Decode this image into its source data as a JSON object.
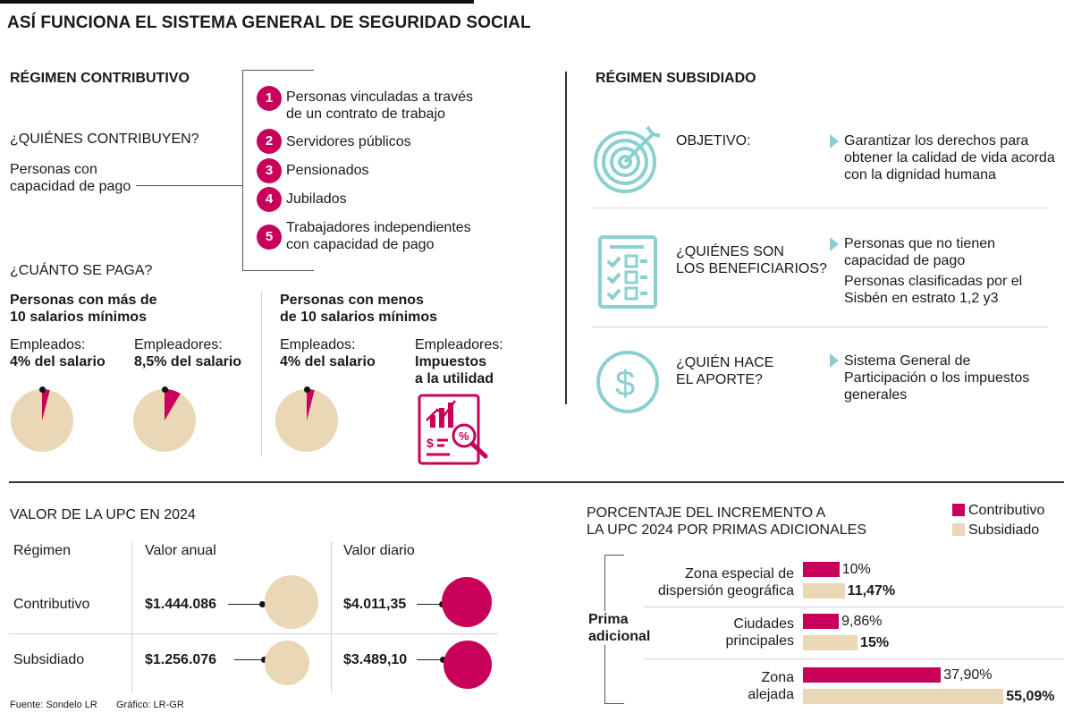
{
  "title": "ASÍ FUNCIONA EL SISTEMA GENERAL DE SEGURIDAD SOCIAL",
  "contributivo": {
    "heading": "RÉGIMEN CONTRIBUTIVO",
    "quienes_q": "¿QUIÉNES CONTRIBUYEN?",
    "quienes_a_1": "Personas con",
    "quienes_a_2": "capacidad de pago",
    "list": [
      {
        "n": "1",
        "l1": "Personas vinculadas a través",
        "l2": "de un contrato de trabajo"
      },
      {
        "n": "2",
        "l1": "Servidores públicos",
        "l2": ""
      },
      {
        "n": "3",
        "l1": "Pensionados",
        "l2": ""
      },
      {
        "n": "4",
        "l1": "Jubilados",
        "l2": ""
      },
      {
        "n": "5",
        "l1": "Trabajadores independientes",
        "l2": "con capacidad de pago"
      }
    ],
    "cuanto_q": "¿CUÁNTO SE PAGA?",
    "mas_1": "Personas con más de",
    "mas_2": "10 salarios mínimos",
    "menos_1": "Personas con menos",
    "menos_2": "de 10 salarios mínimos",
    "empleados_label": "Empleados:",
    "empleadores_label": "Empleadores:",
    "mas_empleados": "4% del salario",
    "mas_empleadores": "8,5% del salario",
    "menos_empleados": "4% del salario",
    "menos_empleadores_1": "Impuestos",
    "menos_empleadores_2": "a la utilidad",
    "pies": [
      {
        "label": "mas-empleados",
        "value": 4
      },
      {
        "label": "mas-empleadores",
        "value": 8.5
      },
      {
        "label": "menos-empleados",
        "value": 4
      }
    ]
  },
  "subsidiado": {
    "heading": "RÉGIMEN SUBSIDIADO",
    "rows": [
      {
        "q1": "OBJETIVO:",
        "q2": "",
        "a": [
          "Garantizar los derechos para",
          "obtener la calidad de vida acorda",
          "con la dignidad humana"
        ],
        "a2": [],
        "icon": "target-icon"
      },
      {
        "q1": "¿QUIÉNES SON",
        "q2": "LOS BENEFICIARIOS?",
        "a": [
          "Personas que no tienen",
          "capacidad de pago"
        ],
        "a2": [
          "Personas clasificadas por el",
          "Sisbén en estrato 1,2 y3"
        ],
        "icon": "checklist-icon"
      },
      {
        "q1": "¿QUIÉN HACE",
        "q2": "EL APORTE?",
        "a": [
          "Sistema General de",
          "Participación o los impuestos",
          "generales"
        ],
        "a2": [],
        "icon": "dollar-coin-icon"
      }
    ]
  },
  "upc": {
    "heading": "VALOR DE LA UPC EN 2024",
    "col_regimen": "Régimen",
    "col_anual": "Valor anual",
    "col_diario": "Valor diario",
    "rows": [
      {
        "regimen": "Contributivo",
        "anual": "$1.444.086",
        "diario": "$4.011,35"
      },
      {
        "regimen": "Subsidiado",
        "anual": "$1.256.076",
        "diario": "$3.489,10"
      }
    ]
  },
  "chart_data": {
    "type": "bar",
    "title": "PORCENTAJE DEL INCREMENTO A LA UPC 2024 POR PRIMAS ADICIONALES",
    "title_1": "PORCENTAJE DEL INCREMENTO A",
    "title_2": "LA UPC 2024 POR PRIMAS ADICIONALES",
    "group_label_1": "Prima",
    "group_label_2": "adicional",
    "categories": [
      "Zona especial de dispersión geográfica",
      "Ciudades principales",
      "Zona alejada"
    ],
    "category_lines": [
      [
        "Zona especial de",
        "dispersión geográfica"
      ],
      [
        "Ciudades",
        "principales"
      ],
      [
        "Zona",
        "alejada"
      ]
    ],
    "series": [
      {
        "name": "Contributivo",
        "values": [
          10,
          9.86,
          37.9
        ],
        "labels": [
          "10%",
          "9,86%",
          "37,90%"
        ],
        "color": "#c8005a"
      },
      {
        "name": "Subsidiado",
        "values": [
          11.47,
          15,
          55.09
        ],
        "labels": [
          "11,47%",
          "15%",
          "55,09%"
        ],
        "color": "#ead7b5"
      }
    ]
  },
  "footer": {
    "fuente": "Fuente: Sondelo LR",
    "grafico": "Gráfico: LR-GR"
  },
  "colors": {
    "accent": "#c8005a",
    "tan": "#ead7b5",
    "teal": "#8ccfd0"
  }
}
